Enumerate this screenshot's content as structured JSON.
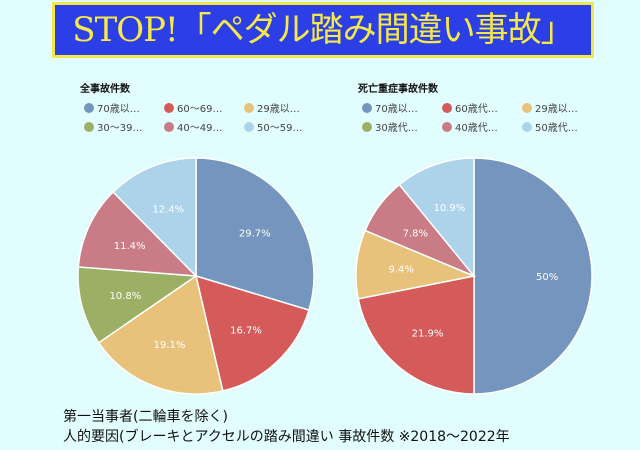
{
  "banner": {
    "title": "STOP!「ペダル踏み間違い事故」"
  },
  "chart_data": [
    {
      "type": "pie",
      "title": "全事故件数",
      "categories": [
        "70歳以…",
        "60～69…",
        "29歳以…",
        "30～39…",
        "40～49…",
        "50～59…"
      ],
      "values": [
        29.7,
        16.7,
        19.1,
        10.8,
        11.4,
        12.4
      ],
      "labels": [
        "29.7%",
        "16.7%",
        "19.1%",
        "10.8%",
        "11.4%",
        "12.4%"
      ],
      "colors": [
        "#7495bd",
        "#d55b5b",
        "#e8c27a",
        "#9bb065",
        "#c97b86",
        "#acd3ea"
      ],
      "legend": "top"
    },
    {
      "type": "pie",
      "title": "死亡重症事故件数",
      "categories": [
        "70歳以…",
        "60歳代…",
        "29歳以…",
        "30歳代…",
        "40歳代…",
        "50歳代…"
      ],
      "values": [
        50,
        21.9,
        9.4,
        0,
        7.8,
        10.9
      ],
      "labels": [
        "50%",
        "21.9%",
        "9.4%",
        "",
        "7.8%",
        "10.9%"
      ],
      "colors": [
        "#7495bd",
        "#d55b5b",
        "#e8c27a",
        "#9bb065",
        "#c97b86",
        "#acd3ea"
      ],
      "legend": "top"
    }
  ],
  "notes": [
    "第一当事者(二輪車を除く)",
    "人的要因(ブレーキとアクセルの踏み間違い 事故件数 ※2018～2022年"
  ]
}
